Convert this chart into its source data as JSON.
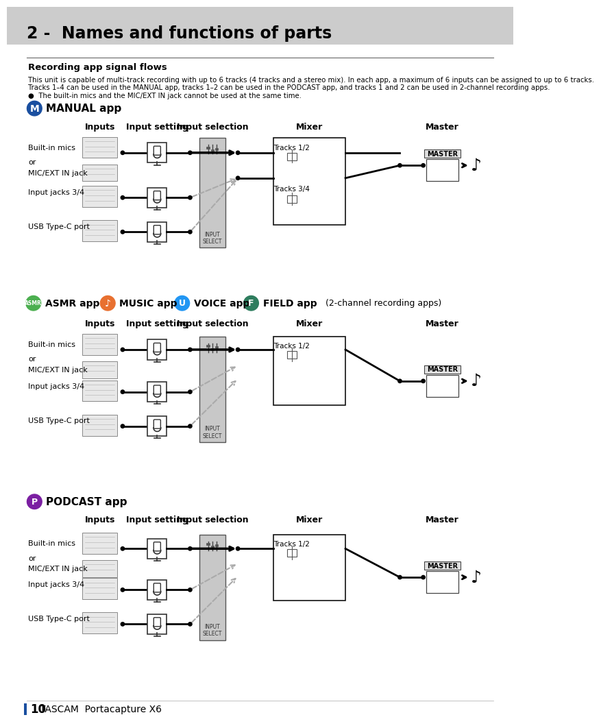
{
  "page_bg": "#ffffff",
  "header_bg": "#cccccc",
  "header_text": "2 -  Names and functions of parts",
  "section_title": "Recording app signal flows",
  "body_line1": "This unit is capable of multi-track recording with up to 6 tracks (4 tracks and a stereo mix). In each app, a maximum of 6 inputs can be assigned to up to 6 tracks.",
  "body_line2": "Tracks 1–4 can be used in the MANUAL app, tracks 1–2 can be used in the PODCAST app, and tracks 1 and 2 can be used in 2-channel recording apps.",
  "body_bullet": "●  The built-in mics and the MIC/EXT IN jack cannot be used at the same time.",
  "manual_label": "MANUAL app",
  "manual_color": "#1a4fa0",
  "manual_letter": "M",
  "asmr_label": "ASMR app",
  "asmr_color": "#4caf50",
  "music_label": "MUSIC app",
  "music_color": "#e87030",
  "voice_label": "VOICE app",
  "voice_color": "#2196f3",
  "field_label": "FIELD app",
  "field_color": "#2e7d5e",
  "twochan_label": "(2-channel recording apps)",
  "podcast_label": "PODCAST app",
  "podcast_color": "#7b1fa2",
  "col_headers": [
    "Inputs",
    "Input setting",
    "Input selection",
    "Mixer",
    "Master"
  ],
  "tracks_12": "Tracks 1/2",
  "tracks_34": "Tracks 3/4",
  "master_text": "MASTER",
  "input_sel_text": "INPUT\nSELECT",
  "footer_num": "10",
  "footer_brand": "TASCAM  Portacapture X6",
  "isel_bg": "#c8c8c8",
  "line_color": "#000000",
  "dash_color": "#aaaaaa"
}
